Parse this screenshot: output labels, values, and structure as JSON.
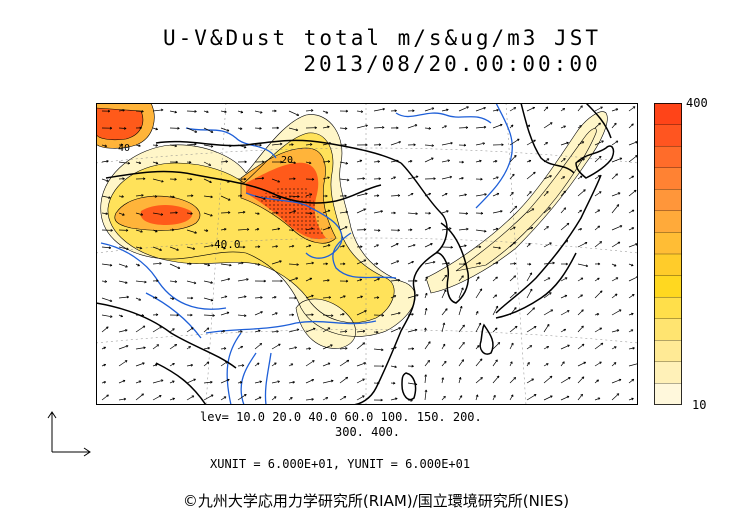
{
  "header": {
    "title": "U-V&Dust total m/s&ug/m3 JST",
    "datetime": "2013/08/20.00:00:00"
  },
  "map": {
    "contour_label_1": "40.0",
    "contour_label_2": "40",
    "contour_label_3": "20",
    "colors": {
      "land_border": "#000000",
      "rivers": "#1e5fd8",
      "shade_low": "#fff6c8",
      "shade_mid": "#ffe25a",
      "shade_high": "#ffb43a",
      "shade_max": "#ff5a1a"
    }
  },
  "legend": {
    "max_label": "400",
    "min_label": "10",
    "colors": [
      "#fff8dc",
      "#fff1b8",
      "#ffea95",
      "#ffe470",
      "#ffdf4a",
      "#ffd820",
      "#ffcc2a",
      "#ffbd35",
      "#ffaa3a",
      "#ff963a",
      "#ff8233",
      "#ff6c2a",
      "#ff5520",
      "#ff4418"
    ]
  },
  "footer": {
    "levels_line1": "lev= 10.0 20.0 40.0 60.0 100. 150. 200.",
    "levels_line2": "300. 400.",
    "units": "XUNIT = 6.000E+01, YUNIT = 6.000E+01",
    "copyright": "©九州大学応用力学研究所(RIAM)/国立環境研究所(NIES)"
  }
}
